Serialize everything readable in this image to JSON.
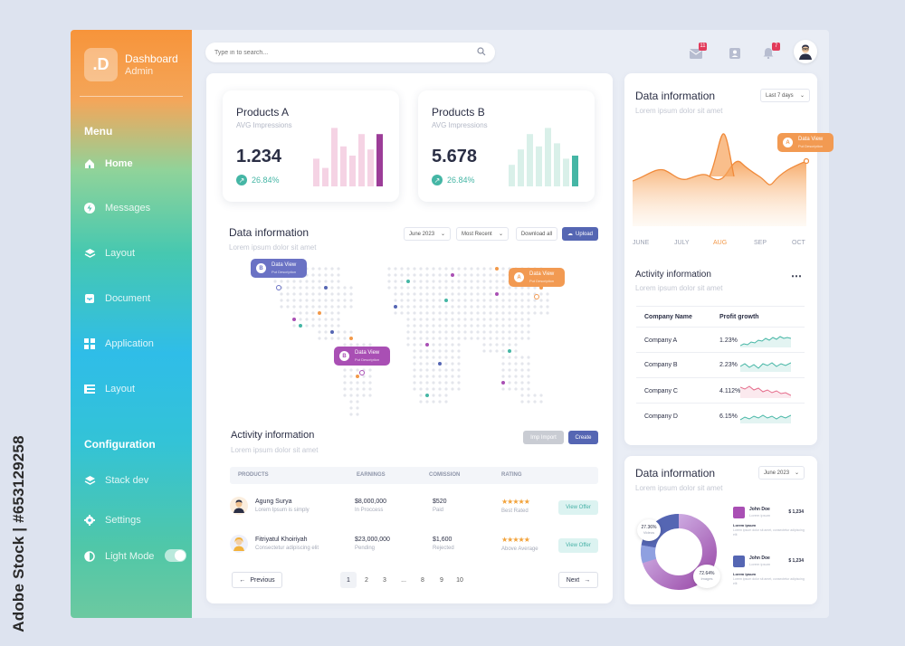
{
  "stock_caption": "Adobe Stock | #653129258",
  "sidebar": {
    "logo": ".D",
    "brand_title": "Dashboard",
    "brand_sub": "Admin",
    "menu_title": "Menu",
    "items": [
      {
        "label": "Home",
        "icon": "home-icon"
      },
      {
        "label": "Messages",
        "icon": "lightning-icon"
      },
      {
        "label": "Layout",
        "icon": "layers-icon"
      },
      {
        "label": "Document",
        "icon": "inbox-icon"
      },
      {
        "label": "Application",
        "icon": "grid-icon"
      },
      {
        "label": "Layout",
        "icon": "list-icon"
      }
    ],
    "config_title": "Configuration",
    "config_items": [
      {
        "label": "Stack dev",
        "icon": "layers-icon"
      },
      {
        "label": "Settings",
        "icon": "gear-icon"
      },
      {
        "label": "Light Mode",
        "icon": "half-circle-icon"
      }
    ]
  },
  "topbar": {
    "search_placeholder": "Type in to search...",
    "mail_badge": "11",
    "bell_badge": "7"
  },
  "products": [
    {
      "title": "Products A",
      "subtitle": "AVG Impressions",
      "value": "1.234",
      "change": "26.84%",
      "bars": [
        0.45,
        0.3,
        0.95,
        0.65,
        0.5,
        0.85,
        0.6,
        0.85
      ]
    },
    {
      "title": "Products B",
      "subtitle": "AVG Impressions",
      "value": "5.678",
      "change": "26.84%",
      "bars": [
        0.35,
        0.6,
        0.85,
        0.65,
        0.95,
        0.7,
        0.45,
        0.5
      ]
    }
  ],
  "map_section": {
    "title": "Data information",
    "subtitle": "Lorem ipsum dolor sit amet",
    "date_select": "June 2023",
    "sort_select": "Most Recent",
    "download_label": "Download all",
    "upload_label": "Upload",
    "pins": [
      {
        "letter": "B",
        "label": "Data View",
        "desc": "Put Description"
      },
      {
        "letter": "A",
        "label": "Data View",
        "desc": "Put Description"
      },
      {
        "letter": "B",
        "label": "Data View",
        "desc": "Put Description"
      }
    ]
  },
  "activity": {
    "title": "Activity information",
    "subtitle": "Lorem ipsum dolor sit amet",
    "import_label": "Imp Import",
    "create_label": "Create",
    "columns": [
      "PRODUCTS",
      "EARNINGS",
      "COMISSION",
      "RATING"
    ],
    "rows": [
      {
        "name": "Agung Surya",
        "desc": "Lorem Ipsum is simply",
        "earn": "$8,000,000",
        "earn_status": "In Proccess",
        "com": "$520",
        "com_status": "Paid",
        "stars": "★★★★★",
        "rating": "Best Rated",
        "rating_value": 5,
        "action": "View Offer"
      },
      {
        "name": "Fitriyatul Khoiriyah",
        "desc": "Consectetur adipiscing elit",
        "earn": "$23,000,000",
        "earn_status": "Pending",
        "com": "$1,600",
        "com_status": "Rejected",
        "stars": "★★★★★",
        "rating": "Above Average",
        "rating_value": 4.5,
        "action": "View Offer"
      }
    ],
    "prev_label": "Previous",
    "next_label": "Next",
    "pages": [
      "1",
      "2",
      "3",
      "...",
      "8",
      "9",
      "10"
    ]
  },
  "right_chart": {
    "title": "Data information",
    "subtitle": "Lorem ipsum dolor sit amet",
    "range_select": "Last 7 days",
    "months": [
      "JUNE",
      "JULY",
      "AUG",
      "SEP",
      "OCT"
    ],
    "highlight_month": "AUG",
    "pin": {
      "letter": "A",
      "label": "Data View",
      "desc": "Put Description"
    }
  },
  "companies": {
    "title": "Activity information",
    "subtitle": "Lorem ipsum dolor sit amet",
    "more_icon": "more-dots-icon",
    "columns": [
      "Company Name",
      "Profit growth"
    ],
    "rows": [
      {
        "name": "Company A",
        "growth": "1.23%",
        "color": "#45b6a5"
      },
      {
        "name": "Company B",
        "growth": "2.23%",
        "color": "#45b6a5"
      },
      {
        "name": "Company C",
        "growth": "4.112%",
        "color": "#e56b8a"
      },
      {
        "name": "Company D",
        "growth": "6.15%",
        "color": "#45b6a5"
      }
    ]
  },
  "donut": {
    "title": "Data information",
    "subtitle": "Lorem ipsum dolor sit amet",
    "date_select": "June 2023",
    "small_pct": "27.36%",
    "small_label": "Videos",
    "big_pct": "72.64%",
    "big_label": "Images",
    "legend": [
      {
        "name": "John Doe",
        "sub": "Lorem ipsum",
        "amount": "$ 1,234",
        "head": "Lorem ipsum",
        "desc": "Lorem ipsum dolor sit amet, consectetur adipiscing elit"
      },
      {
        "name": "John Doe",
        "sub": "Lorem ipsum",
        "amount": "$ 1,234",
        "head": "Lorem ipsum",
        "desc": "Lorem ipsum dolor sit amet, consectetur adipiscing elit"
      }
    ]
  },
  "colors": {
    "accent_purple": "#5566b3",
    "accent_orange": "#f2994a",
    "accent_teal": "#45b6a5",
    "magenta": "#a94fb4"
  }
}
